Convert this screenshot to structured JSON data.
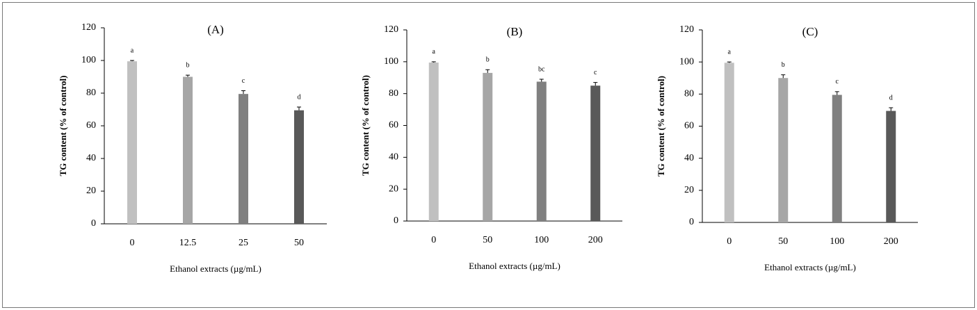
{
  "chart_data": [
    {
      "type": "bar",
      "title": "(A)",
      "x_label": "Ethanol extracts (µg/mL)",
      "y_label": "TG content (% of control)",
      "categories": [
        "0",
        "12.5",
        "25",
        "50"
      ],
      "values": [
        99.5,
        90,
        79.5,
        69.5
      ],
      "errors": [
        0.5,
        1,
        2,
        2
      ],
      "annotations": [
        "a",
        "b",
        "c",
        "d"
      ],
      "colors": [
        "#c0c0c0",
        "#a6a6a6",
        "#808080",
        "#595959"
      ],
      "ylim": [
        0,
        120
      ],
      "yticks": [
        0,
        20,
        40,
        60,
        80,
        100,
        120
      ]
    },
    {
      "type": "bar",
      "title": "(B)",
      "x_label": "Ethanol extracts (µg/mL)",
      "y_label": "TG content (% of control)",
      "categories": [
        "0",
        "50",
        "100",
        "200"
      ],
      "values": [
        99.5,
        93,
        87.5,
        85
      ],
      "errors": [
        0.5,
        2,
        1.5,
        2
      ],
      "annotations": [
        "a",
        "b",
        "bc",
        "c"
      ],
      "colors": [
        "#c0c0c0",
        "#a6a6a6",
        "#808080",
        "#595959"
      ],
      "ylim": [
        0,
        120
      ],
      "yticks": [
        0,
        20,
        40,
        60,
        80,
        100,
        120
      ]
    },
    {
      "type": "bar",
      "title": "(C)",
      "x_label": "Ethanol extracts (µg/mL)",
      "y_label": "TG content (% of control)",
      "categories": [
        "0",
        "50",
        "100",
        "200"
      ],
      "values": [
        99.5,
        90,
        79.5,
        69.5
      ],
      "errors": [
        0.5,
        2,
        2,
        2
      ],
      "annotations": [
        "a",
        "b",
        "c",
        "d"
      ],
      "colors": [
        "#c0c0c0",
        "#a6a6a6",
        "#808080",
        "#595959"
      ],
      "ylim": [
        0,
        120
      ],
      "yticks": [
        0,
        20,
        40,
        60,
        80,
        100,
        120
      ]
    }
  ]
}
